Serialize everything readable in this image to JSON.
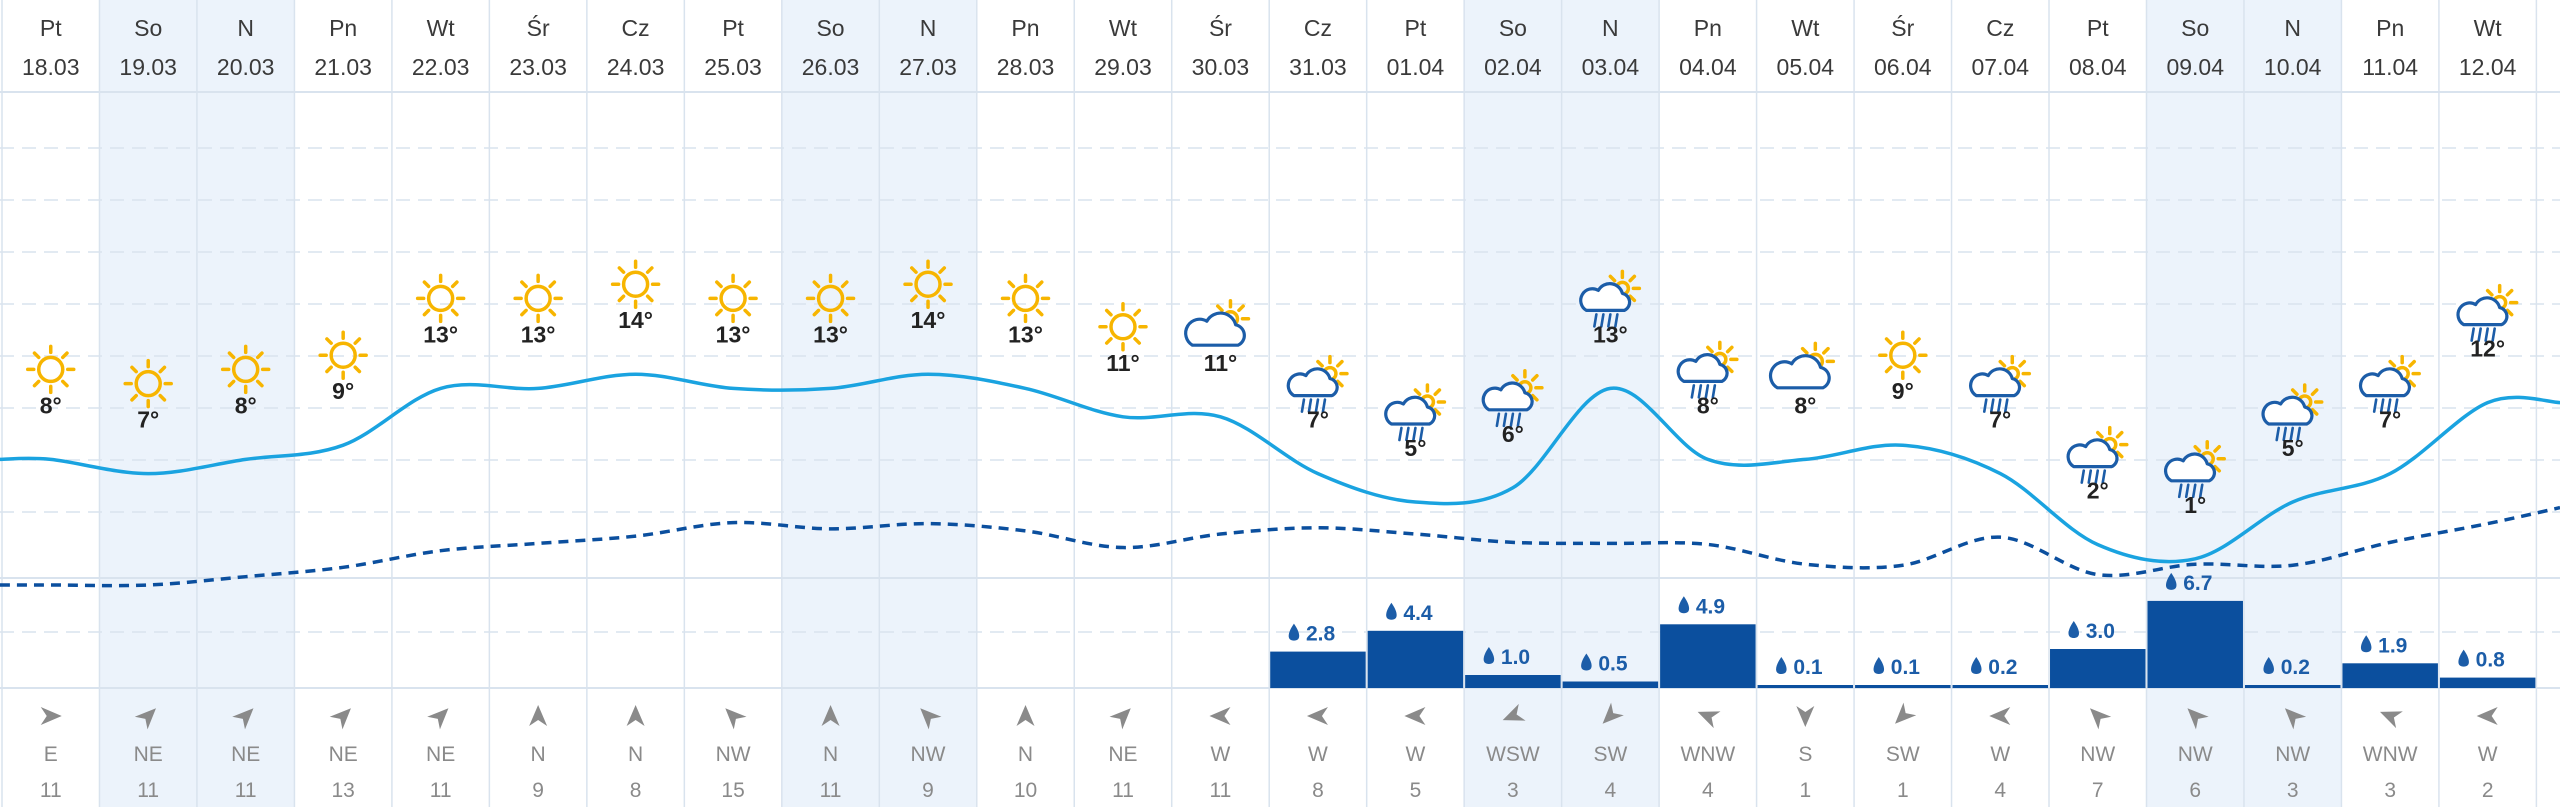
{
  "palette": {
    "weekend_bg": "#ecf3fb",
    "grid": "#d9e3ee",
    "temp_line": "#1aa3e0",
    "precip_bar": "#0b4f9e",
    "dashed_line": "#0b4f9e",
    "sun": "#f7b500",
    "cloud": "#1c5da8"
  },
  "days": [
    {
      "name": "Pt",
      "date": "18.03",
      "weekend": false,
      "icon": "sun-icon",
      "temp": "8°",
      "temp_val": 8,
      "precip": "",
      "precip_val": 0,
      "wind_dir": "E",
      "wind_speed": "11",
      "wind_angle": 270,
      "dash_val": 0
    },
    {
      "name": "So",
      "date": "19.03",
      "weekend": true,
      "icon": "sun-icon",
      "temp": "7°",
      "temp_val": 7,
      "precip": "",
      "precip_val": 0,
      "wind_dir": "NE",
      "wind_speed": "11",
      "wind_angle": 225,
      "dash_val": 0
    },
    {
      "name": "N",
      "date": "20.03",
      "weekend": true,
      "icon": "sun-icon",
      "temp": "8°",
      "temp_val": 8,
      "precip": "",
      "precip_val": 0,
      "wind_dir": "NE",
      "wind_speed": "11",
      "wind_angle": 225,
      "dash_val": 0
    },
    {
      "name": "Pn",
      "date": "21.03",
      "weekend": false,
      "icon": "sun-icon",
      "temp": "9°",
      "temp_val": 9,
      "precip": "",
      "precip_val": 0,
      "wind_dir": "NE",
      "wind_speed": "13",
      "wind_angle": 225,
      "dash_val": 0
    },
    {
      "name": "Wt",
      "date": "22.03",
      "weekend": false,
      "icon": "sun-icon",
      "temp": "13°",
      "temp_val": 13,
      "precip": "",
      "precip_val": 0,
      "wind_dir": "NE",
      "wind_speed": "11",
      "wind_angle": 225,
      "dash_val": 0
    },
    {
      "name": "Śr",
      "date": "23.03",
      "weekend": false,
      "icon": "sun-icon",
      "temp": "13°",
      "temp_val": 13,
      "precip": "",
      "precip_val": 0,
      "wind_dir": "N",
      "wind_speed": "9",
      "wind_angle": 180,
      "dash_val": 0
    },
    {
      "name": "Cz",
      "date": "24.03",
      "weekend": false,
      "icon": "sun-icon",
      "temp": "14°",
      "temp_val": 14,
      "precip": "",
      "precip_val": 0,
      "wind_dir": "N",
      "wind_speed": "8",
      "wind_angle": 180,
      "dash_val": 0
    },
    {
      "name": "Pt",
      "date": "25.03",
      "weekend": false,
      "icon": "sun-icon",
      "temp": "13°",
      "temp_val": 13,
      "precip": "",
      "precip_val": 0,
      "wind_dir": "NW",
      "wind_speed": "15",
      "wind_angle": 135,
      "dash_val": 0
    },
    {
      "name": "So",
      "date": "26.03",
      "weekend": true,
      "icon": "sun-icon",
      "temp": "13°",
      "temp_val": 13,
      "precip": "",
      "precip_val": 0,
      "wind_dir": "N",
      "wind_speed": "11",
      "wind_angle": 180,
      "dash_val": 0
    },
    {
      "name": "N",
      "date": "27.03",
      "weekend": true,
      "icon": "sun-icon",
      "temp": "14°",
      "temp_val": 14,
      "precip": "",
      "precip_val": 0,
      "wind_dir": "NW",
      "wind_speed": "9",
      "wind_angle": 135,
      "dash_val": 0
    },
    {
      "name": "Pn",
      "date": "28.03",
      "weekend": false,
      "icon": "sun-icon",
      "temp": "13°",
      "temp_val": 13,
      "precip": "",
      "precip_val": 0,
      "wind_dir": "N",
      "wind_speed": "10",
      "wind_angle": 180,
      "dash_val": 0
    },
    {
      "name": "Wt",
      "date": "29.03",
      "weekend": false,
      "icon": "sun-icon",
      "temp": "11°",
      "temp_val": 11,
      "precip": "",
      "precip_val": 0,
      "wind_dir": "NE",
      "wind_speed": "11",
      "wind_angle": 225,
      "dash_val": 0
    },
    {
      "name": "Śr",
      "date": "30.03",
      "weekend": false,
      "icon": "cloud-sun-icon",
      "temp": "11°",
      "temp_val": 11,
      "precip": "",
      "precip_val": 0,
      "wind_dir": "W",
      "wind_speed": "11",
      "wind_angle": 90,
      "dash_val": 0
    },
    {
      "name": "Cz",
      "date": "31.03",
      "weekend": false,
      "icon": "rain-icon",
      "temp": "7°",
      "temp_val": 7,
      "precip": "2.8",
      "precip_val": 2.8,
      "wind_dir": "W",
      "wind_speed": "8",
      "wind_angle": 90,
      "dash_val": 0
    },
    {
      "name": "Pt",
      "date": "01.04",
      "weekend": false,
      "icon": "rain-icon",
      "temp": "5°",
      "temp_val": 5,
      "precip": "4.4",
      "precip_val": 4.4,
      "wind_dir": "W",
      "wind_speed": "5",
      "wind_angle": 90,
      "dash_val": 0
    },
    {
      "name": "So",
      "date": "02.04",
      "weekend": true,
      "icon": "rain-icon",
      "temp": "6°",
      "temp_val": 6,
      "precip": "1.0",
      "precip_val": 1.0,
      "wind_dir": "WSW",
      "wind_speed": "3",
      "wind_angle": 68,
      "dash_val": 0
    },
    {
      "name": "N",
      "date": "03.04",
      "weekend": true,
      "icon": "rain-icon",
      "temp": "13°",
      "temp_val": 13,
      "precip": "0.5",
      "precip_val": 0.5,
      "wind_dir": "SW",
      "wind_speed": "4",
      "wind_angle": 45,
      "dash_val": 0
    },
    {
      "name": "Pn",
      "date": "04.04",
      "weekend": false,
      "icon": "rain-icon",
      "temp": "8°",
      "temp_val": 8,
      "precip": "4.9",
      "precip_val": 4.9,
      "wind_dir": "WNW",
      "wind_speed": "4",
      "wind_angle": 112,
      "dash_val": 0
    },
    {
      "name": "Wt",
      "date": "05.04",
      "weekend": false,
      "icon": "cloud-sun-icon",
      "temp": "8°",
      "temp_val": 8,
      "precip": "0.1",
      "precip_val": 0.1,
      "wind_dir": "S",
      "wind_speed": "1",
      "wind_angle": 0,
      "dash_val": 0
    },
    {
      "name": "Śr",
      "date": "06.04",
      "weekend": false,
      "icon": "sun-icon",
      "temp": "9°",
      "temp_val": 9,
      "precip": "0.1",
      "precip_val": 0.1,
      "wind_dir": "SW",
      "wind_speed": "1",
      "wind_angle": 45,
      "dash_val": 0
    },
    {
      "name": "Cz",
      "date": "07.04",
      "weekend": false,
      "icon": "rain-icon",
      "temp": "7°",
      "temp_val": 7,
      "precip": "0.2",
      "precip_val": 0.2,
      "wind_dir": "W",
      "wind_speed": "4",
      "wind_angle": 90,
      "dash_val": 0
    },
    {
      "name": "Pt",
      "date": "08.04",
      "weekend": false,
      "icon": "rain-icon",
      "temp": "2°",
      "temp_val": 2,
      "precip": "3.0",
      "precip_val": 3.0,
      "wind_dir": "NW",
      "wind_speed": "7",
      "wind_angle": 135,
      "dash_val": 0
    },
    {
      "name": "So",
      "date": "09.04",
      "weekend": true,
      "icon": "rain-icon",
      "temp": "1°",
      "temp_val": 1,
      "precip": "6.7",
      "precip_val": 6.7,
      "wind_dir": "NW",
      "wind_speed": "6",
      "wind_angle": 135,
      "dash_val": 0
    },
    {
      "name": "N",
      "date": "10.04",
      "weekend": true,
      "icon": "rain-icon",
      "temp": "5°",
      "temp_val": 5,
      "precip": "0.2",
      "precip_val": 0.2,
      "wind_dir": "NW",
      "wind_speed": "3",
      "wind_angle": 135,
      "dash_val": 0
    },
    {
      "name": "Pn",
      "date": "11.04",
      "weekend": false,
      "icon": "rain-icon",
      "temp": "7°",
      "temp_val": 7,
      "precip": "1.9",
      "precip_val": 1.9,
      "wind_dir": "WNW",
      "wind_speed": "3",
      "wind_angle": 112,
      "dash_val": 0
    },
    {
      "name": "Wt",
      "date": "12.04",
      "weekend": false,
      "icon": "rain-icon",
      "temp": "12°",
      "temp_val": 12,
      "precip": "0.8",
      "precip_val": 0.8,
      "wind_dir": "W",
      "wind_speed": "2",
      "wind_angle": 90,
      "dash_val": 0
    }
  ],
  "chart_data": {
    "type": "line",
    "x": [
      "18.03",
      "19.03",
      "20.03",
      "21.03",
      "22.03",
      "23.03",
      "24.03",
      "25.03",
      "26.03",
      "27.03",
      "28.03",
      "29.03",
      "30.03",
      "31.03",
      "01.04",
      "02.04",
      "03.04",
      "04.04",
      "05.04",
      "06.04",
      "07.04",
      "08.04",
      "09.04",
      "10.04",
      "11.04",
      "12.04"
    ],
    "series": [
      {
        "values": [
          8,
          7,
          8,
          9,
          13,
          13,
          14,
          13,
          13,
          14,
          13,
          11,
          11,
          7,
          5,
          6,
          13,
          8,
          8,
          9,
          7,
          2,
          1,
          5,
          7,
          12
        ]
      },
      {
        "values": [
          -4.4,
          -4.4,
          -3.6,
          -2.7,
          -1.1,
          -0.4,
          0.3,
          1.6,
          1,
          1.5,
          0.8,
          -0.8,
          0.5,
          1.1,
          0.5,
          -0.3,
          -0.4,
          -0.5,
          -2.4,
          -2.5,
          0.2,
          -3.4,
          -2.4,
          -2.5,
          -0.3,
          1.5
        ]
      },
      {
        "values": [
          0,
          0,
          0,
          0,
          0,
          0,
          0,
          0,
          0,
          0,
          0,
          0,
          0,
          2.8,
          4.4,
          1.0,
          0.5,
          4.9,
          0.1,
          0.1,
          0.2,
          3.0,
          6.7,
          0.2,
          1.9,
          0.8
        ]
      }
    ],
    "grid": true
  }
}
